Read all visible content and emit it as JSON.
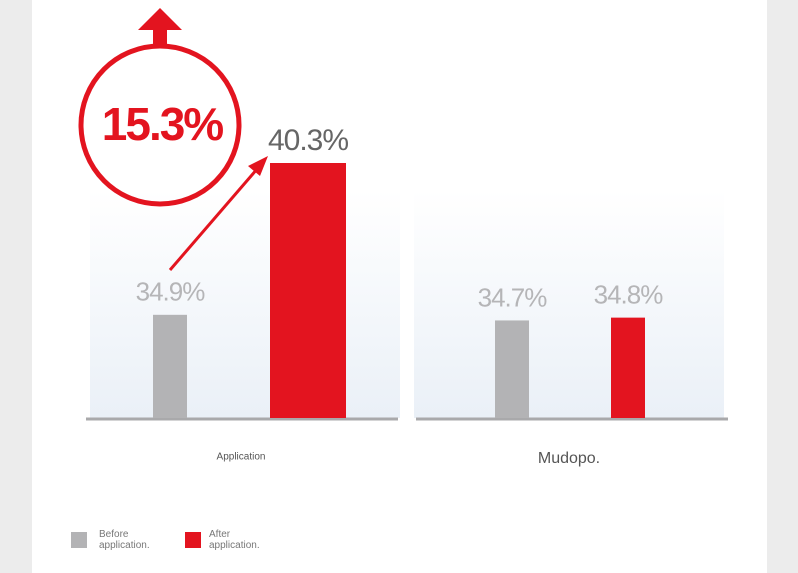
{
  "chart_data": {
    "type": "bar",
    "annotation": "15.3%",
    "categories": [
      "Application",
      "Mudopo."
    ],
    "series": [
      {
        "name": "Before application.",
        "color": "#b3b3b5",
        "values": [
          34.9,
          34.7
        ],
        "value_labels": [
          "34.9%",
          "34.7%"
        ]
      },
      {
        "name": "After application.",
        "color": "#e3141f",
        "values": [
          40.3,
          34.8
        ],
        "value_labels": [
          "40.3%",
          "34.8%"
        ]
      }
    ]
  }
}
